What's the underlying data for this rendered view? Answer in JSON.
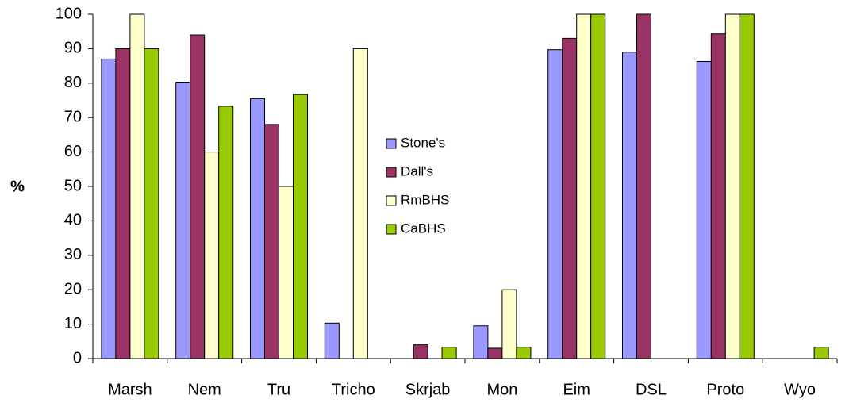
{
  "chart_data": {
    "type": "bar",
    "y_label": "%",
    "categories": [
      "Marsh",
      "Nem",
      "Tru",
      "Tricho",
      "Skrjab",
      "Mon",
      "Eim",
      "DSL",
      "Proto",
      "Wyo"
    ],
    "series": [
      {
        "name": "Stone's",
        "color": "#9999ff",
        "values": [
          87,
          80.3,
          75.5,
          10.3,
          0,
          9.5,
          89.7,
          89,
          86.3,
          0
        ]
      },
      {
        "name": "Dall's",
        "color": "#993366",
        "values": [
          90,
          94,
          68,
          0,
          4,
          3,
          93,
          100,
          94.3,
          0
        ]
      },
      {
        "name": "RmBHS",
        "color": "#ffffcc",
        "values": [
          100,
          60,
          50,
          90,
          0,
          20,
          100,
          0,
          100,
          0
        ]
      },
      {
        "name": "CaBHS",
        "color": "#99cc00",
        "values": [
          90,
          73.3,
          76.7,
          0,
          3.3,
          3.3,
          100,
          0,
          100,
          3.3
        ]
      }
    ],
    "ylim": [
      0,
      100
    ],
    "yticks": [
      0,
      10,
      20,
      30,
      40,
      50,
      60,
      70,
      80,
      90,
      100
    ],
    "grid": false
  }
}
